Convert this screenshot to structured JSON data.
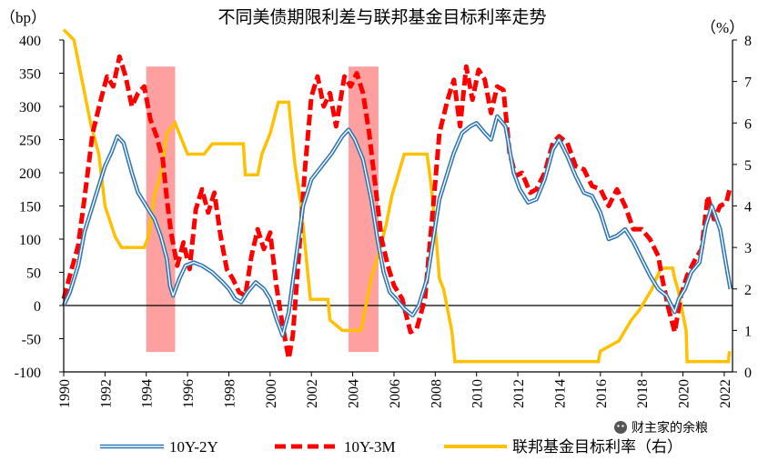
{
  "chart_data": {
    "type": "line",
    "title": "不同美债期限利差与联邦基金目标利率走势",
    "y_left_unit": "（bp）",
    "y_right_unit": "（%）",
    "ylim_left": [
      -100,
      400
    ],
    "ylim_right": [
      0,
      8
    ],
    "yticks_left": [
      "400",
      "350",
      "300",
      "250",
      "200",
      "150",
      "100",
      "50",
      "0",
      "-50",
      "-100"
    ],
    "yticks_right": [
      "8",
      "7",
      "6",
      "5",
      "4",
      "3",
      "2",
      "1",
      "0"
    ],
    "xlim": [
      1990,
      2022.4
    ],
    "xticks": [
      "1990",
      "1992",
      "1994",
      "1996",
      "1998",
      "2000",
      "2002",
      "2004",
      "2006",
      "2008",
      "2010",
      "2012",
      "2014",
      "2016",
      "2018",
      "2020",
      "2022"
    ],
    "shaded_periods": [
      [
        1994.0,
        1995.4
      ],
      [
        2003.8,
        2005.25
      ]
    ],
    "series": [
      {
        "name": "10Y-2Y",
        "axis": "left",
        "color": "#2E75B6",
        "style": "double",
        "points": [
          [
            1990.0,
            0
          ],
          [
            1990.3,
            20
          ],
          [
            1990.7,
            60
          ],
          [
            1991.0,
            110
          ],
          [
            1991.5,
            160
          ],
          [
            1992.0,
            210
          ],
          [
            1992.3,
            230
          ],
          [
            1992.6,
            255
          ],
          [
            1992.9,
            245
          ],
          [
            1993.3,
            200
          ],
          [
            1993.6,
            170
          ],
          [
            1993.9,
            155
          ],
          [
            1994.1,
            145
          ],
          [
            1994.4,
            130
          ],
          [
            1994.7,
            105
          ],
          [
            1995.0,
            70
          ],
          [
            1995.15,
            30
          ],
          [
            1995.3,
            15
          ],
          [
            1995.6,
            40
          ],
          [
            1995.9,
            60
          ],
          [
            1996.3,
            65
          ],
          [
            1996.7,
            60
          ],
          [
            1997.2,
            50
          ],
          [
            1997.7,
            35
          ],
          [
            1998.0,
            25
          ],
          [
            1998.3,
            10
          ],
          [
            1998.6,
            5
          ],
          [
            1998.9,
            20
          ],
          [
            1999.3,
            35
          ],
          [
            1999.7,
            25
          ],
          [
            2000.0,
            10
          ],
          [
            2000.3,
            -20
          ],
          [
            2000.6,
            -45
          ],
          [
            2000.9,
            -10
          ],
          [
            2001.2,
            60
          ],
          [
            2001.6,
            150
          ],
          [
            2002.0,
            190
          ],
          [
            2002.5,
            210
          ],
          [
            2003.0,
            230
          ],
          [
            2003.5,
            255
          ],
          [
            2003.8,
            265
          ],
          [
            2004.1,
            250
          ],
          [
            2004.5,
            220
          ],
          [
            2004.9,
            160
          ],
          [
            2005.2,
            100
          ],
          [
            2005.5,
            50
          ],
          [
            2005.8,
            20
          ],
          [
            2006.1,
            10
          ],
          [
            2006.5,
            -5
          ],
          [
            2006.9,
            -15
          ],
          [
            2007.2,
            0
          ],
          [
            2007.6,
            40
          ],
          [
            2007.9,
            100
          ],
          [
            2008.2,
            160
          ],
          [
            2008.6,
            200
          ],
          [
            2008.9,
            230
          ],
          [
            2009.3,
            260
          ],
          [
            2009.7,
            270
          ],
          [
            2010.0,
            275
          ],
          [
            2010.4,
            260
          ],
          [
            2010.7,
            250
          ],
          [
            2011.0,
            285
          ],
          [
            2011.4,
            270
          ],
          [
            2011.8,
            200
          ],
          [
            2012.1,
            175
          ],
          [
            2012.5,
            155
          ],
          [
            2012.9,
            160
          ],
          [
            2013.3,
            190
          ],
          [
            2013.7,
            235
          ],
          [
            2014.0,
            250
          ],
          [
            2014.4,
            225
          ],
          [
            2014.8,
            195
          ],
          [
            2015.2,
            170
          ],
          [
            2015.6,
            165
          ],
          [
            2016.0,
            140
          ],
          [
            2016.4,
            100
          ],
          [
            2016.8,
            105
          ],
          [
            2017.2,
            115
          ],
          [
            2017.6,
            95
          ],
          [
            2018.0,
            70
          ],
          [
            2018.4,
            45
          ],
          [
            2018.8,
            25
          ],
          [
            2019.2,
            15
          ],
          [
            2019.6,
            -10
          ],
          [
            2019.8,
            10
          ],
          [
            2020.1,
            25
          ],
          [
            2020.4,
            50
          ],
          [
            2020.8,
            65
          ],
          [
            2021.1,
            120
          ],
          [
            2021.4,
            150
          ],
          [
            2021.8,
            115
          ],
          [
            2022.1,
            60
          ],
          [
            2022.3,
            25
          ]
        ]
      },
      {
        "name": "10Y-3M",
        "axis": "left",
        "color": "#FF0000",
        "style": "dashed",
        "points": [
          [
            1990.0,
            10
          ],
          [
            1990.3,
            45
          ],
          [
            1990.7,
            90
          ],
          [
            1991.0,
            160
          ],
          [
            1991.4,
            260
          ],
          [
            1991.8,
            310
          ],
          [
            1992.1,
            345
          ],
          [
            1992.4,
            330
          ],
          [
            1992.7,
            375
          ],
          [
            1993.0,
            345
          ],
          [
            1993.3,
            300
          ],
          [
            1993.6,
            320
          ],
          [
            1993.9,
            330
          ],
          [
            1994.2,
            280
          ],
          [
            1994.5,
            255
          ],
          [
            1994.8,
            220
          ],
          [
            1995.0,
            160
          ],
          [
            1995.2,
            110
          ],
          [
            1995.5,
            60
          ],
          [
            1995.8,
            95
          ],
          [
            1996.1,
            55
          ],
          [
            1996.4,
            145
          ],
          [
            1996.7,
            175
          ],
          [
            1997.0,
            140
          ],
          [
            1997.3,
            170
          ],
          [
            1997.6,
            105
          ],
          [
            1997.9,
            55
          ],
          [
            1998.2,
            40
          ],
          [
            1998.5,
            20
          ],
          [
            1998.8,
            15
          ],
          [
            1999.1,
            75
          ],
          [
            1999.4,
            115
          ],
          [
            1999.7,
            85
          ],
          [
            2000.0,
            110
          ],
          [
            2000.3,
            30
          ],
          [
            2000.6,
            -30
          ],
          [
            2000.9,
            -80
          ],
          [
            2001.1,
            -45
          ],
          [
            2001.4,
            80
          ],
          [
            2001.7,
            210
          ],
          [
            2002.0,
            315
          ],
          [
            2002.3,
            345
          ],
          [
            2002.6,
            300
          ],
          [
            2002.9,
            320
          ],
          [
            2003.2,
            270
          ],
          [
            2003.6,
            345
          ],
          [
            2003.9,
            330
          ],
          [
            2004.2,
            350
          ],
          [
            2004.5,
            320
          ],
          [
            2004.8,
            260
          ],
          [
            2005.1,
            180
          ],
          [
            2005.4,
            100
          ],
          [
            2005.7,
            60
          ],
          [
            2006.0,
            30
          ],
          [
            2006.4,
            10
          ],
          [
            2006.8,
            -40
          ],
          [
            2007.1,
            -35
          ],
          [
            2007.5,
            10
          ],
          [
            2007.9,
            150
          ],
          [
            2008.2,
            260
          ],
          [
            2008.6,
            310
          ],
          [
            2008.9,
            340
          ],
          [
            2009.2,
            270
          ],
          [
            2009.5,
            360
          ],
          [
            2009.8,
            310
          ],
          [
            2010.1,
            355
          ],
          [
            2010.4,
            340
          ],
          [
            2010.7,
            290
          ],
          [
            2011.0,
            330
          ],
          [
            2011.3,
            325
          ],
          [
            2011.6,
            230
          ],
          [
            2011.9,
            195
          ],
          [
            2012.2,
            200
          ],
          [
            2012.6,
            170
          ],
          [
            2012.9,
            175
          ],
          [
            2013.3,
            200
          ],
          [
            2013.7,
            245
          ],
          [
            2014.0,
            255
          ],
          [
            2014.4,
            245
          ],
          [
            2014.8,
            210
          ],
          [
            2015.2,
            205
          ],
          [
            2015.6,
            180
          ],
          [
            2016.0,
            175
          ],
          [
            2016.4,
            150
          ],
          [
            2016.8,
            175
          ],
          [
            2017.2,
            150
          ],
          [
            2017.6,
            115
          ],
          [
            2018.0,
            115
          ],
          [
            2018.4,
            100
          ],
          [
            2018.8,
            75
          ],
          [
            2019.0,
            40
          ],
          [
            2019.3,
            -5
          ],
          [
            2019.6,
            -40
          ],
          [
            2019.9,
            15
          ],
          [
            2020.2,
            45
          ],
          [
            2020.6,
            70
          ],
          [
            2020.9,
            85
          ],
          [
            2021.2,
            165
          ],
          [
            2021.5,
            130
          ],
          [
            2021.8,
            150
          ],
          [
            2022.1,
            155
          ],
          [
            2022.3,
            180
          ]
        ]
      },
      {
        "name": "联邦基金目标利率（右）",
        "axis": "right",
        "color": "#FFC000",
        "style": "solid",
        "points": [
          [
            1990.0,
            8.25
          ],
          [
            1990.5,
            8.0
          ],
          [
            1990.9,
            7.0
          ],
          [
            1991.3,
            6.0
          ],
          [
            1991.7,
            5.25
          ],
          [
            1992.0,
            4.0
          ],
          [
            1992.5,
            3.25
          ],
          [
            1992.8,
            3.0
          ],
          [
            1993.9,
            3.0
          ],
          [
            1994.1,
            3.25
          ],
          [
            1994.4,
            4.25
          ],
          [
            1994.7,
            4.75
          ],
          [
            1995.0,
            5.75
          ],
          [
            1995.4,
            6.0
          ],
          [
            1995.6,
            5.75
          ],
          [
            1996.0,
            5.25
          ],
          [
            1996.8,
            5.25
          ],
          [
            1997.2,
            5.5
          ],
          [
            1998.7,
            5.5
          ],
          [
            1998.8,
            4.75
          ],
          [
            1999.4,
            4.75
          ],
          [
            1999.6,
            5.25
          ],
          [
            2000.0,
            5.75
          ],
          [
            2000.4,
            6.5
          ],
          [
            2000.9,
            6.5
          ],
          [
            2001.0,
            6.0
          ],
          [
            2001.2,
            5.0
          ],
          [
            2001.5,
            4.0
          ],
          [
            2001.8,
            2.5
          ],
          [
            2001.95,
            1.75
          ],
          [
            2002.8,
            1.75
          ],
          [
            2002.9,
            1.25
          ],
          [
            2003.5,
            1.0
          ],
          [
            2004.4,
            1.0
          ],
          [
            2004.6,
            1.5
          ],
          [
            2004.9,
            2.25
          ],
          [
            2005.2,
            2.75
          ],
          [
            2005.6,
            3.5
          ],
          [
            2005.9,
            4.25
          ],
          [
            2006.2,
            4.75
          ],
          [
            2006.5,
            5.25
          ],
          [
            2007.6,
            5.25
          ],
          [
            2007.8,
            4.5
          ],
          [
            2008.0,
            3.5
          ],
          [
            2008.2,
            2.25
          ],
          [
            2008.4,
            2.0
          ],
          [
            2008.8,
            1.0
          ],
          [
            2008.95,
            0.25
          ],
          [
            2015.9,
            0.25
          ],
          [
            2016.0,
            0.5
          ],
          [
            2016.9,
            0.75
          ],
          [
            2017.2,
            1.0
          ],
          [
            2017.5,
            1.25
          ],
          [
            2017.9,
            1.5
          ],
          [
            2018.2,
            1.75
          ],
          [
            2018.5,
            2.0
          ],
          [
            2018.7,
            2.25
          ],
          [
            2018.95,
            2.5
          ],
          [
            2019.5,
            2.5
          ],
          [
            2019.6,
            2.25
          ],
          [
            2019.75,
            2.0
          ],
          [
            2019.85,
            1.75
          ],
          [
            2020.15,
            1.0
          ],
          [
            2020.2,
            0.25
          ],
          [
            2022.2,
            0.25
          ],
          [
            2022.25,
            0.5
          ]
        ]
      }
    ]
  },
  "legend": {
    "s1": "10Y-2Y",
    "s2": "10Y-3M",
    "s3": "联邦基金目标利率（右）"
  },
  "watermark": {
    "text": "财主家的余粮"
  }
}
